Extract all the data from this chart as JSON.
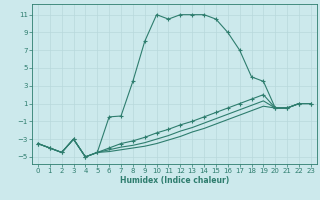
{
  "title": "",
  "xlabel": "Humidex (Indice chaleur)",
  "bg_color": "#cce9ec",
  "line_color": "#2e7d6e",
  "grid_color": "#b8d8dc",
  "xlim": [
    -0.5,
    23.5
  ],
  "ylim": [
    -5.8,
    12.2
  ],
  "xticks": [
    0,
    1,
    2,
    3,
    4,
    5,
    6,
    7,
    8,
    9,
    10,
    11,
    12,
    13,
    14,
    15,
    16,
    17,
    18,
    19,
    20,
    21,
    22,
    23
  ],
  "yticks": [
    -5,
    -3,
    -1,
    1,
    3,
    5,
    7,
    9,
    11
  ],
  "curve1_x": [
    0,
    1,
    2,
    3,
    4,
    5,
    6,
    7,
    8,
    9,
    10,
    11,
    12,
    13,
    14,
    15,
    16,
    17,
    18,
    19,
    20,
    21,
    22,
    23
  ],
  "curve1_y": [
    -3.5,
    -4.0,
    -4.5,
    -3.0,
    -5.0,
    -4.5,
    -0.5,
    -0.4,
    3.5,
    8.0,
    11.0,
    10.5,
    11.0,
    11.0,
    11.0,
    10.5,
    9.0,
    7.0,
    4.0,
    3.5,
    0.5,
    0.5,
    1.0,
    1.0
  ],
  "curve2_x": [
    0,
    1,
    2,
    3,
    4,
    5,
    6,
    7,
    8,
    9,
    10,
    11,
    12,
    13,
    14,
    15,
    16,
    17,
    18,
    19,
    20,
    21,
    22,
    23
  ],
  "curve2_y": [
    -3.5,
    -4.0,
    -4.5,
    -3.0,
    -5.0,
    -4.5,
    -4.0,
    -3.5,
    -3.2,
    -2.8,
    -2.3,
    -1.9,
    -1.4,
    -1.0,
    -0.5,
    0.0,
    0.5,
    1.0,
    1.5,
    2.0,
    0.5,
    0.5,
    1.0,
    1.0
  ],
  "curve3_x": [
    0,
    1,
    2,
    3,
    4,
    5,
    6,
    7,
    8,
    9,
    10,
    11,
    12,
    13,
    14,
    15,
    16,
    17,
    18,
    19,
    20,
    21,
    22,
    23
  ],
  "curve3_y": [
    -3.5,
    -4.0,
    -4.5,
    -3.0,
    -5.0,
    -4.5,
    -4.2,
    -3.9,
    -3.7,
    -3.4,
    -3.0,
    -2.6,
    -2.1,
    -1.7,
    -1.2,
    -0.7,
    -0.2,
    0.3,
    0.8,
    1.3,
    0.5,
    0.5,
    1.0,
    1.0
  ],
  "curve4_x": [
    0,
    1,
    2,
    3,
    4,
    5,
    6,
    7,
    8,
    9,
    10,
    11,
    12,
    13,
    14,
    15,
    16,
    17,
    18,
    19,
    20,
    21,
    22,
    23
  ],
  "curve4_y": [
    -3.5,
    -4.0,
    -4.5,
    -3.0,
    -5.0,
    -4.5,
    -4.4,
    -4.2,
    -4.0,
    -3.8,
    -3.5,
    -3.1,
    -2.7,
    -2.2,
    -1.8,
    -1.3,
    -0.8,
    -0.3,
    0.2,
    0.7,
    0.5,
    0.5,
    1.0,
    1.0
  ],
  "label_fontsize": 5.5,
  "tick_fontsize": 5.0
}
